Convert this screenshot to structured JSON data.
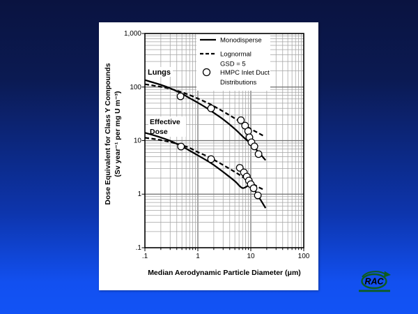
{
  "slide": {
    "type": "presentation-slide-with-figure"
  },
  "colors": {
    "background_top": "#0a1340",
    "background_bottom": "#1253f5",
    "panel": "#ffffff",
    "curve": "#000000",
    "grid_minor": "#a3a3a3",
    "grid_major": "#6e6e6e",
    "logo_green": "#0d5c1e"
  },
  "logo": {
    "text": "RAC"
  },
  "chart_data": {
    "type": "line",
    "title": "",
    "xlabel": "Median Aerodynamic Particle Diameter (μm)",
    "ylabel_line1": "Dose Equivalent for Class Y Compounds",
    "ylabel_line2": "(Sv year⁻¹ per mg U m⁻³)",
    "x_scale": "log",
    "y_scale": "log",
    "xlim": [
      0.1,
      100
    ],
    "ylim": [
      0.1,
      1000
    ],
    "x_ticks": [
      ".1",
      "1",
      "10",
      "100"
    ],
    "y_ticks": [
      "1,000",
      "100",
      "10",
      "1",
      ".1"
    ],
    "grid": "both-major-and-minor-log",
    "legend_position": "top-right-inside",
    "legend": [
      {
        "label": "Monodisperse",
        "style": "solid-line"
      },
      {
        "label": "Lognormal",
        "label2": "GSD = 5",
        "style": "dashed-line"
      },
      {
        "label": "HMPC Inlet Duct",
        "label2": "Distributions",
        "style": "circle-marker"
      }
    ],
    "annotations": {
      "lungs": "Lungs",
      "effective1": "Effective",
      "effective2": "Dose"
    },
    "series": [
      {
        "name": "Lungs - Monodisperse",
        "style": "solid",
        "points": [
          [
            0.1,
            135
          ],
          [
            0.15,
            120
          ],
          [
            0.2,
            110
          ],
          [
            0.3,
            95
          ],
          [
            0.5,
            75
          ],
          [
            0.7,
            62
          ],
          [
            1,
            51
          ],
          [
            1.5,
            40
          ],
          [
            2,
            33
          ],
          [
            3,
            25
          ],
          [
            5,
            16.5
          ],
          [
            7,
            12
          ],
          [
            10,
            8.7
          ],
          [
            14,
            6.1
          ],
          [
            19,
            4.3
          ]
        ]
      },
      {
        "name": "Lungs - Lognormal GSD=5",
        "style": "dashed",
        "points": [
          [
            0.1,
            113
          ],
          [
            0.15,
            106
          ],
          [
            0.2,
            101
          ],
          [
            0.3,
            93
          ],
          [
            0.5,
            80
          ],
          [
            0.7,
            71
          ],
          [
            1,
            61
          ],
          [
            1.5,
            51
          ],
          [
            2,
            44
          ],
          [
            3,
            35
          ],
          [
            5,
            26
          ],
          [
            7,
            21
          ],
          [
            10,
            16.5
          ],
          [
            14,
            13.8
          ],
          [
            18,
            12
          ]
        ]
      },
      {
        "name": "Effective Dose - Monodisperse",
        "style": "solid",
        "points": [
          [
            0.1,
            14
          ],
          [
            0.15,
            12.5
          ],
          [
            0.2,
            11.4
          ],
          [
            0.3,
            9.9
          ],
          [
            0.5,
            7.8
          ],
          [
            0.7,
            6.5
          ],
          [
            1,
            5.3
          ],
          [
            1.5,
            4.2
          ],
          [
            2,
            3.5
          ],
          [
            3,
            2.6
          ],
          [
            5,
            1.75
          ],
          [
            7,
            1.3
          ],
          [
            10,
            1.45
          ],
          [
            14,
            0.9
          ],
          [
            19,
            0.55
          ]
        ]
      },
      {
        "name": "Effective Dose - Lognormal GSD=5",
        "style": "dashed",
        "points": [
          [
            0.1,
            11.3
          ],
          [
            0.15,
            10.7
          ],
          [
            0.2,
            10.2
          ],
          [
            0.3,
            9.4
          ],
          [
            0.5,
            8.2
          ],
          [
            0.7,
            7.3
          ],
          [
            1,
            6.1
          ],
          [
            1.5,
            5.1
          ],
          [
            2,
            4.4
          ],
          [
            3,
            3.5
          ],
          [
            5,
            2.6
          ],
          [
            7,
            2.1
          ],
          [
            10,
            1.65
          ],
          [
            14,
            1.35
          ],
          [
            18,
            1.2
          ]
        ]
      },
      {
        "name": "HMPC Inlet Duct Distributions - Lungs",
        "style": "circles",
        "points": [
          [
            0.47,
            67
          ],
          [
            1.78,
            40
          ],
          [
            6.5,
            24
          ],
          [
            7.8,
            19
          ],
          [
            8.9,
            15
          ],
          [
            9.4,
            11.5
          ],
          [
            10.3,
            9.3
          ],
          [
            11.7,
            7.8
          ],
          [
            14,
            5.6
          ]
        ]
      },
      {
        "name": "HMPC Inlet Duct Distributions - Effective Dose",
        "style": "circles",
        "points": [
          [
            0.48,
            7.75
          ],
          [
            1.78,
            4.5
          ],
          [
            6.2,
            3.1
          ],
          [
            7.4,
            2.55
          ],
          [
            8.4,
            2.13
          ],
          [
            9.2,
            1.79
          ],
          [
            10,
            1.54
          ],
          [
            11.3,
            1.29
          ],
          [
            13.6,
            0.95
          ]
        ]
      }
    ]
  }
}
